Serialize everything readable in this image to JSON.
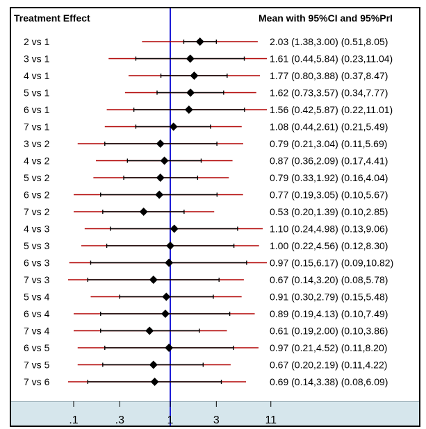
{
  "headers": {
    "left": "Treatment Effect",
    "right": "Mean with 95%CI and 95%PrI"
  },
  "colors": {
    "ci": "#000000",
    "pri": "#b00000",
    "reference": "#1a1ad6",
    "marker": "#000000",
    "axis_band": "#d6e6ec"
  },
  "chart_data": {
    "type": "forest",
    "scale": "log",
    "reference_value": 1,
    "xlim": [
      0.1,
      11
    ],
    "x_ticks": [
      {
        "value": 0.1,
        "label": ".1"
      },
      {
        "value": 0.3,
        "label": ".3"
      },
      {
        "value": 1,
        "label": "1"
      },
      {
        "value": 3,
        "label": "3"
      },
      {
        "value": 11,
        "label": "11"
      }
    ],
    "rows": [
      {
        "label": "2 vs 1",
        "mean": 2.03,
        "ci": [
          1.38,
          3.0
        ],
        "pri": [
          0.51,
          8.05
        ],
        "text": "2.03 (1.38,3.00)  (0.51,8.05)"
      },
      {
        "label": "3 vs 1",
        "mean": 1.61,
        "ci": [
          0.44,
          5.84
        ],
        "pri": [
          0.23,
          11.04
        ],
        "text": "1.61 (0.44,5.84)  (0.23,11.04)"
      },
      {
        "label": "4 vs 1",
        "mean": 1.77,
        "ci": [
          0.8,
          3.88
        ],
        "pri": [
          0.37,
          8.47
        ],
        "text": "1.77 (0.80,3.88)  (0.37,8.47)"
      },
      {
        "label": "5 vs 1",
        "mean": 1.62,
        "ci": [
          0.73,
          3.57
        ],
        "pri": [
          0.34,
          7.77
        ],
        "text": "1.62 (0.73,3.57)  (0.34,7.77)"
      },
      {
        "label": "6 vs 1",
        "mean": 1.56,
        "ci": [
          0.42,
          5.87
        ],
        "pri": [
          0.22,
          11.01
        ],
        "text": "1.56 (0.42,5.87)  (0.22,11.01)"
      },
      {
        "label": "7 vs 1",
        "mean": 1.08,
        "ci": [
          0.44,
          2.61
        ],
        "pri": [
          0.21,
          5.49
        ],
        "text": "1.08 (0.44,2.61)  (0.21,5.49)"
      },
      {
        "label": "3 vs 2",
        "mean": 0.79,
        "ci": [
          0.21,
          3.04
        ],
        "pri": [
          0.11,
          5.69
        ],
        "text": "0.79 (0.21,3.04)  (0.11,5.69)"
      },
      {
        "label": "4 vs 2",
        "mean": 0.87,
        "ci": [
          0.36,
          2.09
        ],
        "pri": [
          0.17,
          4.41
        ],
        "text": "0.87 (0.36,2.09)  (0.17,4.41)"
      },
      {
        "label": "5 vs 2",
        "mean": 0.79,
        "ci": [
          0.33,
          1.92
        ],
        "pri": [
          0.16,
          4.04
        ],
        "text": "0.79 (0.33,1.92)  (0.16,4.04)"
      },
      {
        "label": "6 vs 2",
        "mean": 0.77,
        "ci": [
          0.19,
          3.05
        ],
        "pri": [
          0.1,
          5.67
        ],
        "text": "0.77 (0.19,3.05)  (0.10,5.67)"
      },
      {
        "label": "7 vs 2",
        "mean": 0.53,
        "ci": [
          0.2,
          1.39
        ],
        "pri": [
          0.1,
          2.85
        ],
        "text": "0.53 (0.20,1.39)  (0.10,2.85)"
      },
      {
        "label": "4 vs 3",
        "mean": 1.1,
        "ci": [
          0.24,
          4.98
        ],
        "pri": [
          0.13,
          9.06
        ],
        "text": "1.10 (0.24,4.98)  (0.13,9.06)"
      },
      {
        "label": "5 vs 3",
        "mean": 1.0,
        "ci": [
          0.22,
          4.56
        ],
        "pri": [
          0.12,
          8.3
        ],
        "text": "1.00 (0.22,4.56)  (0.12,8.30)"
      },
      {
        "label": "6 vs 3",
        "mean": 0.97,
        "ci": [
          0.15,
          6.17
        ],
        "pri": [
          0.09,
          10.82
        ],
        "text": "0.97 (0.15,6.17)  (0.09,10.82)"
      },
      {
        "label": "7 vs 3",
        "mean": 0.67,
        "ci": [
          0.14,
          3.2
        ],
        "pri": [
          0.08,
          5.78
        ],
        "text": "0.67 (0.14,3.20)  (0.08,5.78)"
      },
      {
        "label": "5 vs 4",
        "mean": 0.91,
        "ci": [
          0.3,
          2.79
        ],
        "pri": [
          0.15,
          5.48
        ],
        "text": "0.91 (0.30,2.79)  (0.15,5.48)"
      },
      {
        "label": "6 vs 4",
        "mean": 0.89,
        "ci": [
          0.19,
          4.13
        ],
        "pri": [
          0.1,
          7.49
        ],
        "text": "0.89 (0.19,4.13)  (0.10,7.49)"
      },
      {
        "label": "7 vs 4",
        "mean": 0.61,
        "ci": [
          0.19,
          2.0
        ],
        "pri": [
          0.1,
          3.86
        ],
        "text": "0.61 (0.19,2.00)  (0.10,3.86)"
      },
      {
        "label": "6 vs 5",
        "mean": 0.97,
        "ci": [
          0.21,
          4.52
        ],
        "pri": [
          0.11,
          8.2
        ],
        "text": "0.97 (0.21,4.52)  (0.11,8.20)"
      },
      {
        "label": "7 vs 5",
        "mean": 0.67,
        "ci": [
          0.2,
          2.19
        ],
        "pri": [
          0.11,
          4.22
        ],
        "text": "0.67 (0.20,2.19)  (0.11,4.22)"
      },
      {
        "label": "7 vs 6",
        "mean": 0.69,
        "ci": [
          0.14,
          3.38
        ],
        "pri": [
          0.08,
          6.09
        ],
        "text": "0.69 (0.14,3.38)  (0.08,6.09)"
      }
    ]
  }
}
